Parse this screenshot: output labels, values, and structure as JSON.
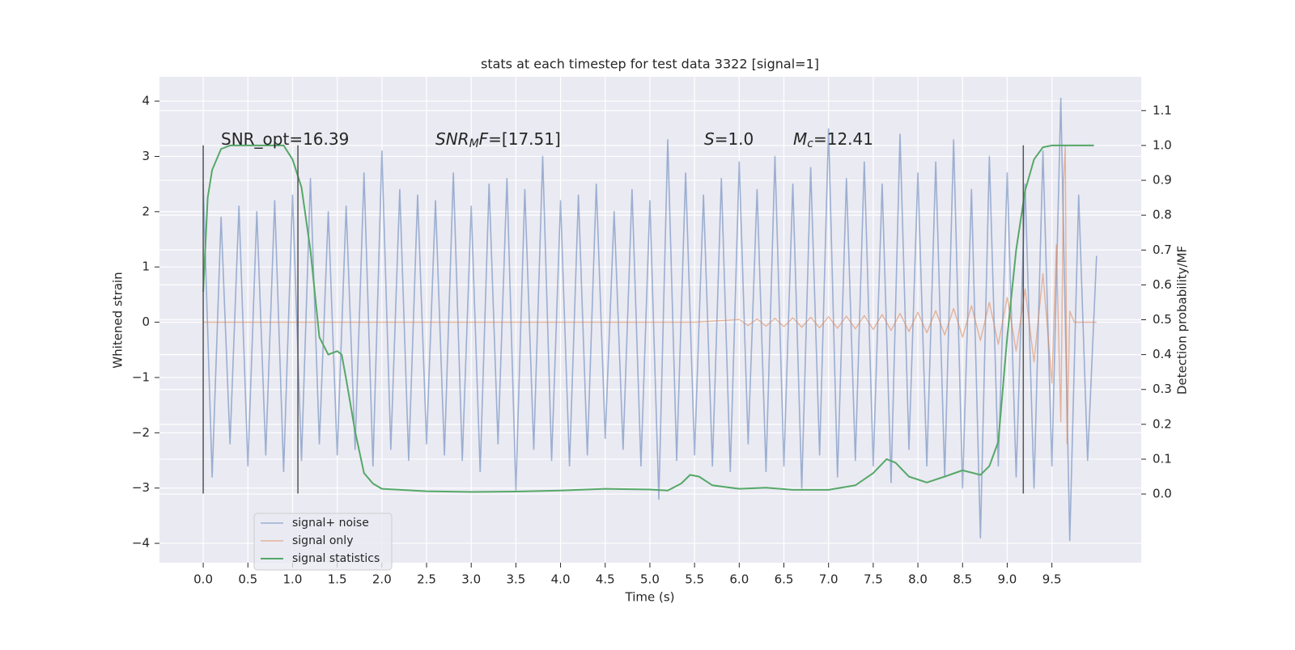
{
  "chart_data": {
    "type": "line",
    "title": "stats at each timestep for test data 3322 [signal=1]",
    "xlabel": "Time (s)",
    "ylabel": "Whitened strain",
    "y2label": "Detection probability/MF",
    "xlim": [
      -0.49,
      10.5
    ],
    "ylim": [
      -4.35,
      4.44
    ],
    "y2lim": [
      -0.197,
      1.197
    ],
    "grid": true,
    "xticks": [
      {
        "value": 0,
        "label": "0.0"
      },
      {
        "value": 0.5,
        "label": "0.5"
      },
      {
        "value": 1,
        "label": "1.0"
      },
      {
        "value": 1.5,
        "label": "1.5"
      },
      {
        "value": 2,
        "label": "2.0"
      },
      {
        "value": 2.5,
        "label": "2.5"
      },
      {
        "value": 3,
        "label": "3.0"
      },
      {
        "value": 3.5,
        "label": "3.5"
      },
      {
        "value": 4,
        "label": "4.0"
      },
      {
        "value": 4.5,
        "label": "4.5"
      },
      {
        "value": 5,
        "label": "5.0"
      },
      {
        "value": 5.5,
        "label": "5.5"
      },
      {
        "value": 6,
        "label": "6.0"
      },
      {
        "value": 6.5,
        "label": "6.5"
      },
      {
        "value": 7,
        "label": "7.0"
      },
      {
        "value": 7.5,
        "label": "7.5"
      },
      {
        "value": 8,
        "label": "8.0"
      },
      {
        "value": 8.5,
        "label": "8.5"
      },
      {
        "value": 9,
        "label": "9.0"
      },
      {
        "value": 9.5,
        "label": "9.5"
      }
    ],
    "yticks": [
      {
        "value": -4,
        "label": "−4"
      },
      {
        "value": -3,
        "label": "−3"
      },
      {
        "value": -2,
        "label": "−2"
      },
      {
        "value": -1,
        "label": "−1"
      },
      0,
      1,
      2,
      3,
      4
    ],
    "y2ticks": [
      {
        "value": 0,
        "label": "0.0"
      },
      {
        "value": 0.1,
        "label": "0.1"
      },
      {
        "value": 0.2,
        "label": "0.2"
      },
      {
        "value": 0.3,
        "label": "0.3"
      },
      {
        "value": 0.4,
        "label": "0.4"
      },
      {
        "value": 0.5,
        "label": "0.5"
      },
      {
        "value": 0.6,
        "label": "0.6"
      },
      {
        "value": 0.7,
        "label": "0.7"
      },
      {
        "value": 0.8,
        "label": "0.8"
      },
      {
        "value": 0.9,
        "label": "0.9"
      },
      {
        "value": 1,
        "label": "1.0"
      },
      {
        "value": 1.1,
        "label": "1.1"
      }
    ],
    "legend": "lower left",
    "vlines": {
      "x": [
        0,
        1.06,
        9.18
      ],
      "ymin": -3.1,
      "ymax": 3.2,
      "color": "#555555"
    },
    "annotations": [
      {
        "text": "SNR_opt=16.39"
      },
      {
        "italic": "SNR",
        "sub": "M",
        "italic2": "F",
        "text": "=[17.51]"
      },
      {
        "italic": "S",
        "text": "=1.0"
      },
      {
        "italic": "M",
        "sub": "c",
        "text": "=12.41"
      }
    ],
    "series": [
      {
        "name": "signal+ noise",
        "color": "#4c72b0",
        "x": [
          0,
          0.1,
          0.2,
          0.3,
          0.4,
          0.5,
          0.6,
          0.7,
          0.8,
          0.9,
          1,
          1.1,
          1.2,
          1.3,
          1.4,
          1.5,
          1.6,
          1.7,
          1.8,
          1.9,
          2,
          2.1,
          2.2,
          2.3,
          2.4,
          2.5,
          2.6,
          2.7,
          2.8,
          2.9,
          3,
          3.1,
          3.2,
          3.3,
          3.4,
          3.5,
          3.6,
          3.7,
          3.8,
          3.9,
          4,
          4.1,
          4.2,
          4.3,
          4.4,
          4.5,
          4.6,
          4.7,
          4.8,
          4.9,
          5,
          5.1,
          5.2,
          5.3,
          5.4,
          5.5,
          5.6,
          5.7,
          5.8,
          5.9,
          6,
          6.1,
          6.2,
          6.3,
          6.4,
          6.5,
          6.6,
          6.7,
          6.8,
          6.9,
          7,
          7.1,
          7.2,
          7.3,
          7.4,
          7.5,
          7.6,
          7.7,
          7.8,
          7.9,
          8,
          8.1,
          8.2,
          8.3,
          8.4,
          8.5,
          8.6,
          8.7,
          8.8,
          8.9,
          9,
          9.1,
          9.2,
          9.3,
          9.4,
          9.5,
          9.6,
          9.7,
          9.8,
          9.9,
          10
        ],
        "values": [
          2.5,
          -2.8,
          1.9,
          -2.2,
          2.1,
          -2.6,
          2.0,
          -2.4,
          2.2,
          -2.7,
          2.3,
          -2.5,
          2.6,
          -2.2,
          2.0,
          -2.4,
          2.1,
          -2.3,
          2.7,
          -2.6,
          3.1,
          -2.3,
          2.4,
          -2.5,
          2.3,
          -2.2,
          2.2,
          -2.4,
          2.7,
          -2.5,
          2.1,
          -2.7,
          2.5,
          -2.2,
          2.6,
          -3.05,
          2.4,
          -2.3,
          3.0,
          -2.5,
          2.2,
          -2.6,
          2.3,
          -2.4,
          2.5,
          -2.1,
          2.0,
          -2.3,
          2.4,
          -2.6,
          2.2,
          -3.2,
          3.3,
          -2.5,
          2.7,
          -2.4,
          2.3,
          -2.6,
          2.6,
          -2.7,
          2.9,
          -2.2,
          2.4,
          -2.7,
          3.0,
          -2.6,
          2.5,
          -3.0,
          2.8,
          -2.4,
          3.5,
          -2.8,
          2.6,
          -2.5,
          2.9,
          -2.6,
          2.5,
          -2.9,
          3.4,
          -2.3,
          2.7,
          -2.6,
          2.9,
          -2.8,
          3.3,
          -3.0,
          2.4,
          -3.9,
          3.0,
          -2.6,
          2.7,
          -2.8,
          2.5,
          -3.0,
          3.1,
          -2.6,
          4.05,
          -3.95,
          2.3,
          -2.5,
          1.2
        ]
      },
      {
        "name": "signal only",
        "color": "#dd8452",
        "x": [
          0,
          5.5,
          6,
          6.1,
          6.2,
          6.3,
          6.4,
          6.5,
          6.6,
          6.7,
          6.8,
          6.9,
          7,
          7.1,
          7.2,
          7.3,
          7.4,
          7.5,
          7.6,
          7.7,
          7.8,
          7.9,
          8,
          8.1,
          8.2,
          8.3,
          8.4,
          8.5,
          8.6,
          8.7,
          8.8,
          8.9,
          9,
          9.1,
          9.2,
          9.3,
          9.4,
          9.5,
          9.55,
          9.6,
          9.63,
          9.65,
          9.67,
          9.7,
          9.75,
          10
        ],
        "values": [
          0,
          0,
          0.05,
          -0.06,
          0.06,
          -0.07,
          0.07,
          -0.08,
          0.08,
          -0.09,
          0.09,
          -0.1,
          0.1,
          -0.11,
          0.11,
          -0.12,
          0.12,
          -0.13,
          0.14,
          -0.15,
          0.16,
          -0.17,
          0.18,
          -0.19,
          0.21,
          -0.23,
          0.25,
          -0.27,
          0.3,
          -0.33,
          0.36,
          -0.4,
          0.45,
          -0.52,
          0.6,
          -0.72,
          0.88,
          -1.1,
          1.4,
          -1.8,
          2.5,
          3.2,
          -2.2,
          0.2,
          0,
          0
        ]
      },
      {
        "name": "signal statistics",
        "color": "#55a868",
        "axis": "y2",
        "x": [
          0,
          0.05,
          0.1,
          0.2,
          0.3,
          0.9,
          1,
          1.1,
          1.2,
          1.3,
          1.4,
          1.5,
          1.55,
          1.6,
          1.7,
          1.8,
          1.9,
          2,
          2.5,
          3,
          3.5,
          4,
          4.5,
          5,
          5.2,
          5.35,
          5.45,
          5.55,
          5.7,
          6,
          6.3,
          6.6,
          7,
          7.3,
          7.5,
          7.65,
          7.75,
          7.9,
          8.1,
          8.3,
          8.5,
          8.7,
          8.8,
          8.9,
          9,
          9.1,
          9.2,
          9.3,
          9.4,
          9.5,
          9.97
        ],
        "values": [
          0.58,
          0.85,
          0.93,
          0.99,
          1.0,
          1.0,
          0.96,
          0.88,
          0.7,
          0.45,
          0.4,
          0.41,
          0.4,
          0.33,
          0.18,
          0.06,
          0.03,
          0.015,
          0.008,
          0.006,
          0.007,
          0.01,
          0.015,
          0.013,
          0.01,
          0.03,
          0.055,
          0.05,
          0.025,
          0.015,
          0.018,
          0.012,
          0.012,
          0.025,
          0.06,
          0.1,
          0.09,
          0.05,
          0.033,
          0.05,
          0.068,
          0.055,
          0.08,
          0.15,
          0.45,
          0.7,
          0.87,
          0.96,
          0.995,
          1.0,
          1.0
        ]
      }
    ]
  }
}
